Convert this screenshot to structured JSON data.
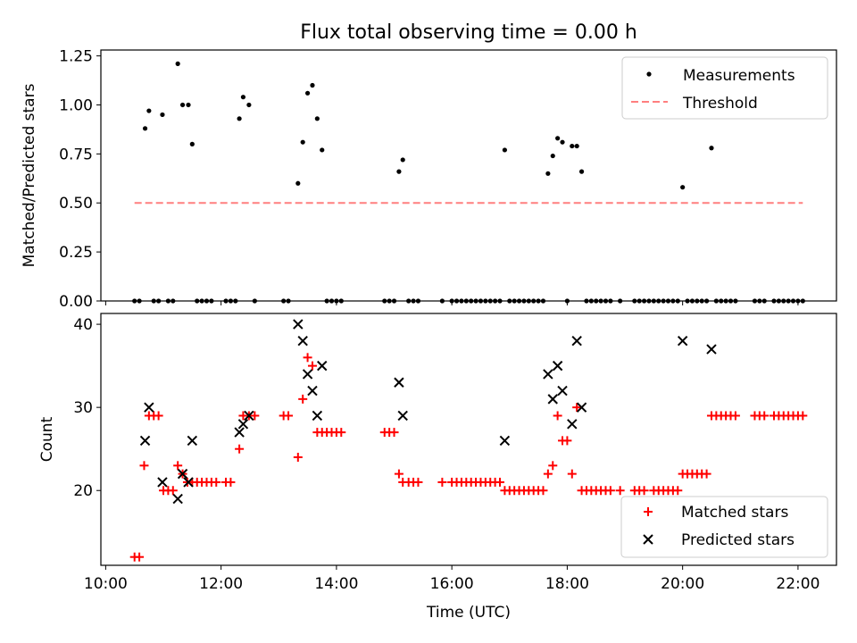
{
  "title": "Flux total observing time = 0.00 h",
  "colors": {
    "measurement": "#000000",
    "threshold": "#ff7f7f",
    "matched": "#ff0000",
    "predicted": "#000000"
  },
  "chart_data": [
    {
      "type": "scatter",
      "title": "Flux total observing time = 0.00 h",
      "xlabel": "",
      "ylabel": "Matched/Predicted stars",
      "xlim": [
        "09:55",
        "22:40"
      ],
      "ylim": [
        0,
        1.28
      ],
      "yticks": [
        "0.00",
        "0.25",
        "0.50",
        "0.75",
        "1.00",
        "1.25"
      ],
      "yticks_values": [
        0,
        0.25,
        0.5,
        0.75,
        1.0,
        1.25
      ],
      "xticks_values": [
        "10:00",
        "12:00",
        "14:00",
        "16:00",
        "18:00",
        "20:00",
        "22:00"
      ],
      "legend": {
        "placement": "top-right",
        "entries": [
          "Measurements",
          "Threshold"
        ]
      },
      "series": [
        {
          "name": "Measurements",
          "marker": "dot",
          "points": [
            [
              "10:41",
              0.88
            ],
            [
              "10:45",
              0.97
            ],
            [
              "10:59",
              0.95
            ],
            [
              "11:15",
              1.21
            ],
            [
              "11:20",
              1.0
            ],
            [
              "11:26",
              1.0
            ],
            [
              "11:30",
              0.8
            ],
            [
              "12:19",
              0.93
            ],
            [
              "12:23",
              1.04
            ],
            [
              "12:29",
              1.0
            ],
            [
              "13:20",
              0.6
            ],
            [
              "13:25",
              0.81
            ],
            [
              "13:30",
              1.06
            ],
            [
              "13:35",
              1.1
            ],
            [
              "13:40",
              0.93
            ],
            [
              "13:45",
              0.77
            ],
            [
              "15:05",
              0.66
            ],
            [
              "15:09",
              0.72
            ],
            [
              "16:55",
              0.77
            ],
            [
              "17:40",
              0.65
            ],
            [
              "17:45",
              0.74
            ],
            [
              "17:50",
              0.83
            ],
            [
              "17:55",
              0.81
            ],
            [
              "18:05",
              0.79
            ],
            [
              "18:10",
              0.79
            ],
            [
              "18:15",
              0.66
            ],
            [
              "20:00",
              0.58
            ],
            [
              "20:30",
              0.78
            ],
            [
              "10:30",
              0
            ],
            [
              "10:35",
              0
            ],
            [
              "10:50",
              0
            ],
            [
              "10:55",
              0
            ],
            [
              "11:05",
              0
            ],
            [
              "11:10",
              0
            ],
            [
              "11:35",
              0
            ],
            [
              "11:40",
              0
            ],
            [
              "11:45",
              0
            ],
            [
              "11:50",
              0
            ],
            [
              "12:05",
              0
            ],
            [
              "12:10",
              0
            ],
            [
              "12:15",
              0
            ],
            [
              "12:35",
              0
            ],
            [
              "13:05",
              0
            ],
            [
              "13:10",
              0
            ],
            [
              "13:50",
              0
            ],
            [
              "13:55",
              0
            ],
            [
              "14:00",
              0
            ],
            [
              "14:05",
              0
            ],
            [
              "14:50",
              0
            ],
            [
              "14:55",
              0
            ],
            [
              "15:00",
              0
            ],
            [
              "15:15",
              0
            ],
            [
              "15:20",
              0
            ],
            [
              "15:25",
              0
            ],
            [
              "15:50",
              0
            ],
            [
              "16:00",
              0
            ],
            [
              "16:05",
              0
            ],
            [
              "16:10",
              0
            ],
            [
              "16:15",
              0
            ],
            [
              "16:20",
              0
            ],
            [
              "16:25",
              0
            ],
            [
              "16:30",
              0
            ],
            [
              "16:35",
              0
            ],
            [
              "16:40",
              0
            ],
            [
              "16:45",
              0
            ],
            [
              "16:50",
              0
            ],
            [
              "17:00",
              0
            ],
            [
              "17:05",
              0
            ],
            [
              "17:10",
              0
            ],
            [
              "17:15",
              0
            ],
            [
              "17:20",
              0
            ],
            [
              "17:25",
              0
            ],
            [
              "17:30",
              0
            ],
            [
              "17:35",
              0
            ],
            [
              "18:00",
              0
            ],
            [
              "18:20",
              0
            ],
            [
              "18:25",
              0
            ],
            [
              "18:30",
              0
            ],
            [
              "18:35",
              0
            ],
            [
              "18:40",
              0
            ],
            [
              "18:45",
              0
            ],
            [
              "18:55",
              0
            ],
            [
              "19:10",
              0
            ],
            [
              "19:15",
              0
            ],
            [
              "19:20",
              0
            ],
            [
              "19:25",
              0
            ],
            [
              "19:30",
              0
            ],
            [
              "19:35",
              0
            ],
            [
              "19:40",
              0
            ],
            [
              "19:45",
              0
            ],
            [
              "19:50",
              0
            ],
            [
              "19:55",
              0
            ],
            [
              "20:05",
              0
            ],
            [
              "20:10",
              0
            ],
            [
              "20:15",
              0
            ],
            [
              "20:20",
              0
            ],
            [
              "20:25",
              0
            ],
            [
              "20:35",
              0
            ],
            [
              "20:40",
              0
            ],
            [
              "20:45",
              0
            ],
            [
              "20:50",
              0
            ],
            [
              "20:55",
              0
            ],
            [
              "21:15",
              0
            ],
            [
              "21:20",
              0
            ],
            [
              "21:25",
              0
            ],
            [
              "21:35",
              0
            ],
            [
              "21:40",
              0
            ],
            [
              "21:45",
              0
            ],
            [
              "21:50",
              0
            ],
            [
              "21:55",
              0
            ],
            [
              "22:00",
              0
            ],
            [
              "22:05",
              0
            ]
          ]
        },
        {
          "name": "Threshold",
          "style": "dashed",
          "points": [
            [
              "10:30",
              0.5
            ],
            [
              "22:05",
              0.5
            ]
          ]
        }
      ]
    },
    {
      "type": "scatter",
      "title": "",
      "xlabel": "Time (UTC)",
      "ylabel": "Count",
      "xlim": [
        "09:55",
        "22:40"
      ],
      "ylim": [
        11,
        41.3
      ],
      "yticks": [
        "20",
        "30",
        "40"
      ],
      "yticks_values": [
        20,
        30,
        40
      ],
      "xticks": [
        "10:00",
        "12:00",
        "14:00",
        "16:00",
        "18:00",
        "20:00",
        "22:00"
      ],
      "xticks_values": [
        "10:00",
        "12:00",
        "14:00",
        "16:00",
        "18:00",
        "20:00",
        "22:00"
      ],
      "legend": {
        "placement": "bottom-right",
        "entries": [
          "Matched stars",
          "Predicted stars"
        ]
      },
      "series": [
        {
          "name": "Matched stars",
          "marker": "plus",
          "points": [
            [
              "10:30",
              12
            ],
            [
              "10:35",
              12
            ],
            [
              "10:40",
              23
            ],
            [
              "10:45",
              29
            ],
            [
              "10:50",
              29
            ],
            [
              "10:55",
              29
            ],
            [
              "11:00",
              20
            ],
            [
              "11:05",
              20
            ],
            [
              "11:10",
              20
            ],
            [
              "11:15",
              23
            ],
            [
              "11:20",
              22
            ],
            [
              "11:25",
              21
            ],
            [
              "11:30",
              21
            ],
            [
              "11:35",
              21
            ],
            [
              "11:40",
              21
            ],
            [
              "11:45",
              21
            ],
            [
              "11:50",
              21
            ],
            [
              "11:55",
              21
            ],
            [
              "12:05",
              21
            ],
            [
              "12:10",
              21
            ],
            [
              "12:19",
              25
            ],
            [
              "12:23",
              29
            ],
            [
              "12:29",
              29
            ],
            [
              "12:35",
              29
            ],
            [
              "13:05",
              29
            ],
            [
              "13:10",
              29
            ],
            [
              "13:20",
              24
            ],
            [
              "13:25",
              31
            ],
            [
              "13:30",
              36
            ],
            [
              "13:35",
              35
            ],
            [
              "13:40",
              27
            ],
            [
              "13:45",
              27
            ],
            [
              "13:50",
              27
            ],
            [
              "13:55",
              27
            ],
            [
              "14:00",
              27
            ],
            [
              "14:05",
              27
            ],
            [
              "14:50",
              27
            ],
            [
              "14:55",
              27
            ],
            [
              "15:00",
              27
            ],
            [
              "15:05",
              22
            ],
            [
              "15:09",
              21
            ],
            [
              "15:15",
              21
            ],
            [
              "15:20",
              21
            ],
            [
              "15:25",
              21
            ],
            [
              "15:50",
              21
            ],
            [
              "16:00",
              21
            ],
            [
              "16:05",
              21
            ],
            [
              "16:10",
              21
            ],
            [
              "16:15",
              21
            ],
            [
              "16:20",
              21
            ],
            [
              "16:25",
              21
            ],
            [
              "16:30",
              21
            ],
            [
              "16:35",
              21
            ],
            [
              "16:40",
              21
            ],
            [
              "16:45",
              21
            ],
            [
              "16:50",
              21
            ],
            [
              "16:55",
              20
            ],
            [
              "17:00",
              20
            ],
            [
              "17:05",
              20
            ],
            [
              "17:10",
              20
            ],
            [
              "17:15",
              20
            ],
            [
              "17:20",
              20
            ],
            [
              "17:25",
              20
            ],
            [
              "17:30",
              20
            ],
            [
              "17:35",
              20
            ],
            [
              "17:40",
              22
            ],
            [
              "17:45",
              23
            ],
            [
              "17:50",
              29
            ],
            [
              "17:55",
              26
            ],
            [
              "18:00",
              26
            ],
            [
              "18:05",
              22
            ],
            [
              "18:10",
              30
            ],
            [
              "18:15",
              20
            ],
            [
              "18:20",
              20
            ],
            [
              "18:25",
              20
            ],
            [
              "18:30",
              20
            ],
            [
              "18:35",
              20
            ],
            [
              "18:40",
              20
            ],
            [
              "18:45",
              20
            ],
            [
              "18:55",
              20
            ],
            [
              "19:10",
              20
            ],
            [
              "19:15",
              20
            ],
            [
              "19:20",
              20
            ],
            [
              "19:30",
              20
            ],
            [
              "19:35",
              20
            ],
            [
              "19:40",
              20
            ],
            [
              "19:45",
              20
            ],
            [
              "19:50",
              20
            ],
            [
              "19:55",
              20
            ],
            [
              "20:00",
              22
            ],
            [
              "20:05",
              22
            ],
            [
              "20:10",
              22
            ],
            [
              "20:15",
              22
            ],
            [
              "20:20",
              22
            ],
            [
              "20:25",
              22
            ],
            [
              "20:30",
              29
            ],
            [
              "20:35",
              29
            ],
            [
              "20:40",
              29
            ],
            [
              "20:45",
              29
            ],
            [
              "20:50",
              29
            ],
            [
              "20:55",
              29
            ],
            [
              "21:15",
              29
            ],
            [
              "21:20",
              29
            ],
            [
              "21:25",
              29
            ],
            [
              "21:35",
              29
            ],
            [
              "21:40",
              29
            ],
            [
              "21:45",
              29
            ],
            [
              "21:50",
              29
            ],
            [
              "21:55",
              29
            ],
            [
              "22:00",
              29
            ],
            [
              "22:05",
              29
            ]
          ]
        },
        {
          "name": "Predicted stars",
          "marker": "x",
          "points": [
            [
              "10:41",
              26
            ],
            [
              "10:45",
              30
            ],
            [
              "10:59",
              21
            ],
            [
              "11:15",
              19
            ],
            [
              "11:20",
              22
            ],
            [
              "11:26",
              21
            ],
            [
              "11:30",
              26
            ],
            [
              "12:19",
              27
            ],
            [
              "12:23",
              28
            ],
            [
              "12:29",
              29
            ],
            [
              "13:20",
              40
            ],
            [
              "13:25",
              38
            ],
            [
              "13:30",
              34
            ],
            [
              "13:35",
              32
            ],
            [
              "13:40",
              29
            ],
            [
              "13:45",
              35
            ],
            [
              "15:05",
              33
            ],
            [
              "15:09",
              29
            ],
            [
              "16:55",
              26
            ],
            [
              "17:40",
              34
            ],
            [
              "17:45",
              31
            ],
            [
              "17:50",
              35
            ],
            [
              "17:55",
              32
            ],
            [
              "18:05",
              28
            ],
            [
              "18:10",
              38
            ],
            [
              "18:15",
              30
            ],
            [
              "20:00",
              38
            ],
            [
              "20:30",
              37
            ]
          ]
        }
      ]
    }
  ]
}
